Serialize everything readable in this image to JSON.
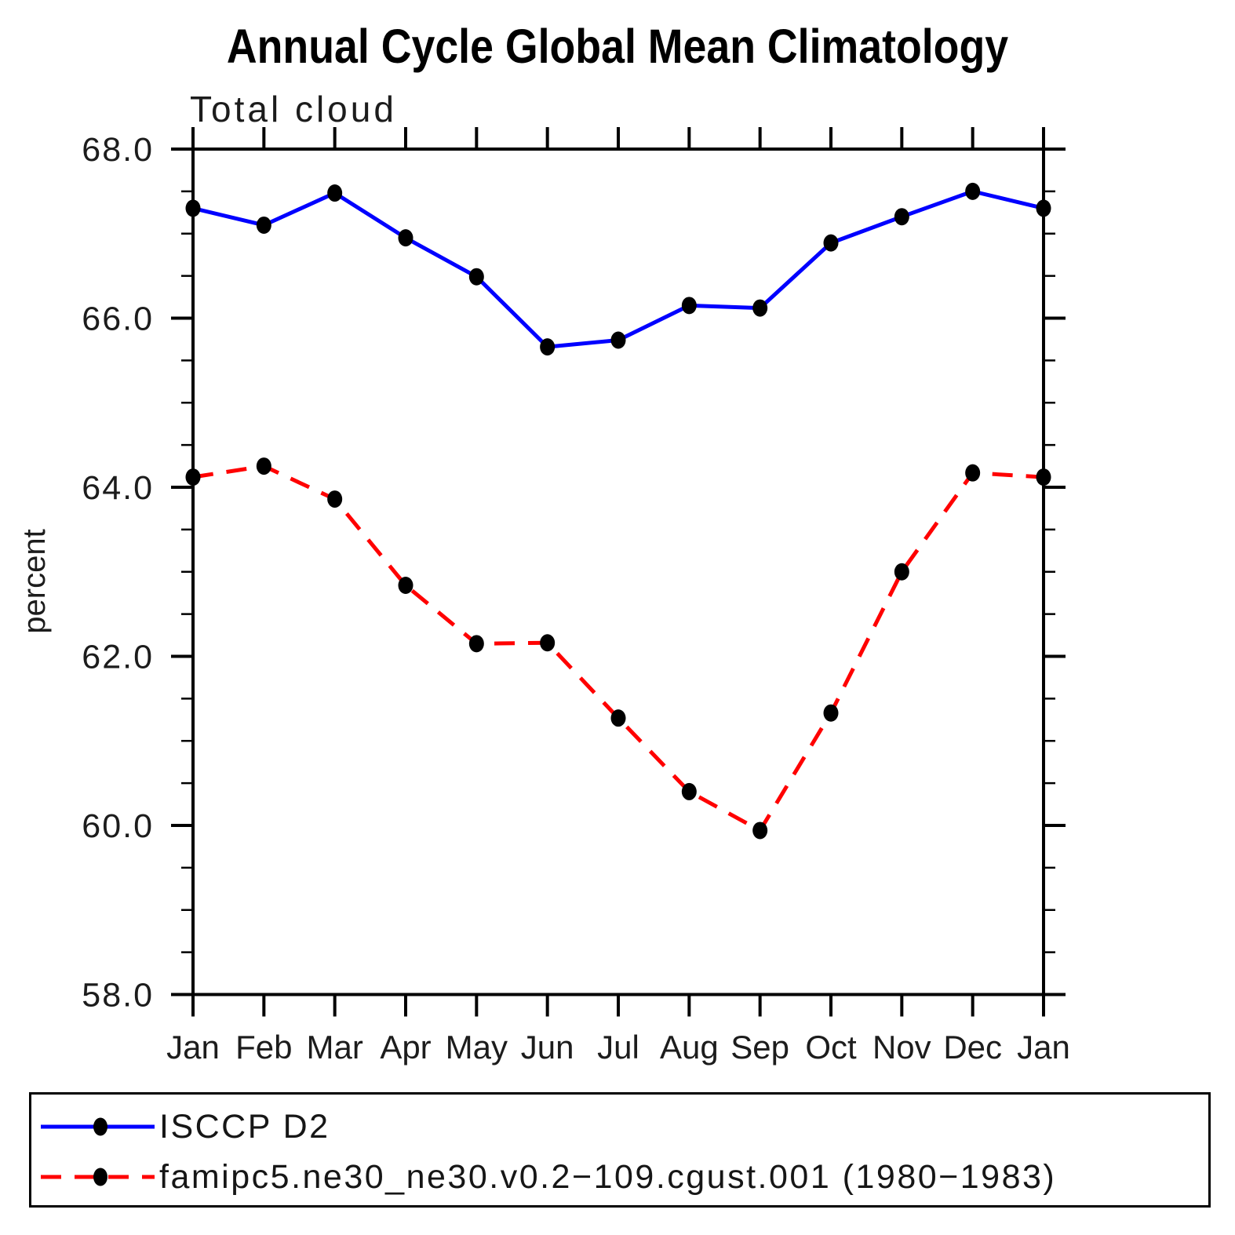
{
  "chart_data": {
    "type": "line",
    "title": "Annual Cycle Global Mean Climatology",
    "subtitle": "Total cloud",
    "xlabel": "",
    "ylabel": "percent",
    "categories": [
      "Jan",
      "Feb",
      "Mar",
      "Apr",
      "May",
      "Jun",
      "Jul",
      "Aug",
      "Sep",
      "Oct",
      "Nov",
      "Dec",
      "Jan"
    ],
    "ylim": [
      58.0,
      68.0
    ],
    "ytick_major": [
      58.0,
      60.0,
      62.0,
      64.0,
      66.0,
      68.0
    ],
    "ytick_labels": [
      "58.0",
      "60.0",
      "62.0",
      "64.0",
      "66.0",
      "68.0"
    ],
    "ytick_minor_interval": 0.5,
    "grid": false,
    "legend_position": "bottom-left-box",
    "series": [
      {
        "name": "ISCCP D2",
        "line_color": "#0000ff",
        "line_style": "solid",
        "marker": "filled-circle",
        "marker_color": "#000000",
        "values": [
          67.3,
          67.1,
          67.48,
          66.95,
          66.49,
          65.66,
          65.74,
          66.15,
          66.12,
          66.89,
          67.2,
          67.5,
          67.3
        ]
      },
      {
        "name": "famipc5.ne30_ne30.v0.2−109.cgust.001 (1980−1983)",
        "line_color": "#ff0000",
        "line_style": "dashed",
        "marker": "filled-circle",
        "marker_color": "#000000",
        "values": [
          64.12,
          64.25,
          63.86,
          62.84,
          62.15,
          62.16,
          61.27,
          60.4,
          59.94,
          61.33,
          63.0,
          64.17,
          64.12
        ]
      }
    ]
  },
  "colors": {
    "background": "#ffffff",
    "axis": "#000000",
    "series_1": "#0000ff",
    "series_2": "#ff0000",
    "marker": "#000000"
  }
}
